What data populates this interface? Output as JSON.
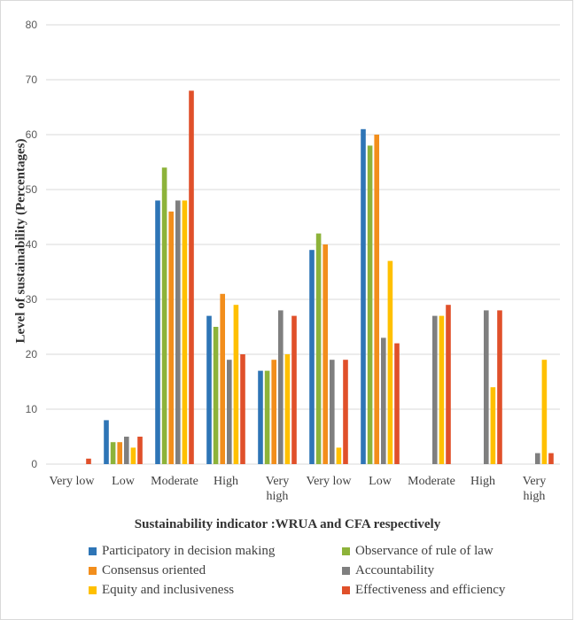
{
  "chart_data": {
    "type": "bar",
    "xlabel": "Sustainability indicator :WRUA and CFA respectively",
    "ylabel": "Level of sustainability (Percentages)",
    "ylim": [
      0,
      80
    ],
    "yticks": [
      0,
      10,
      20,
      30,
      40,
      50,
      60,
      70,
      80
    ],
    "grid": true,
    "legend_position": "bottom",
    "categories": [
      "Very low",
      "Low",
      "Moderate",
      "High",
      "Very high",
      "Very low",
      "Low",
      "Moderate",
      "High",
      "Very high"
    ],
    "category_lines": [
      [
        "Very low"
      ],
      [
        "Low"
      ],
      [
        "Moderate"
      ],
      [
        "High"
      ],
      [
        "Very",
        "high"
      ],
      [
        "Very low"
      ],
      [
        "Low"
      ],
      [
        "Moderate"
      ],
      [
        "High"
      ],
      [
        "Very",
        "high"
      ]
    ],
    "series": [
      {
        "name": "Participatory in decision making",
        "color": "#2E75B6",
        "values": [
          0,
          8,
          48,
          27,
          17,
          39,
          61,
          0,
          0,
          0
        ]
      },
      {
        "name": "Observance of rule of law",
        "color": "#8DB33A",
        "values": [
          0,
          4,
          54,
          25,
          17,
          42,
          58,
          0,
          0,
          0
        ]
      },
      {
        "name": "Consensus oriented",
        "color": "#F28E1C",
        "values": [
          0,
          4,
          46,
          31,
          19,
          40,
          60,
          0,
          0,
          0
        ]
      },
      {
        "name": "Accountability",
        "color": "#7F7F7F",
        "values": [
          0,
          5,
          48,
          19,
          28,
          19,
          23,
          27,
          28,
          2
        ]
      },
      {
        "name": "Equity and inclusiveness",
        "color": "#FFC000",
        "values": [
          0,
          3,
          48,
          29,
          20,
          3,
          37,
          27,
          14,
          19
        ]
      },
      {
        "name": "Effectiveness and efficiency",
        "color": "#E0502A",
        "values": [
          1,
          5,
          68,
          20,
          27,
          19,
          22,
          29,
          28,
          2
        ]
      }
    ]
  }
}
